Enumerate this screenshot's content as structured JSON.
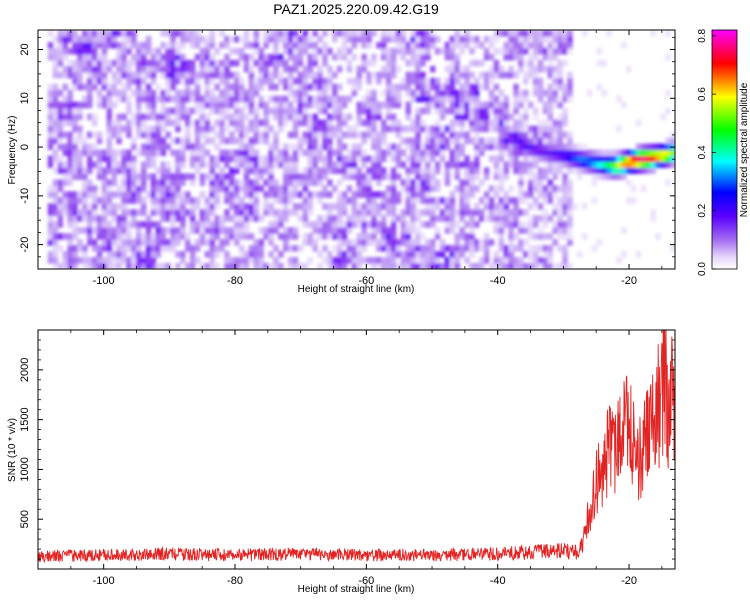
{
  "figure": {
    "title": "PAZ1.2025.220.09.42.G19"
  },
  "chart_data": [
    {
      "type": "heatmap",
      "title": "",
      "xlabel": "Height of straight line (km)",
      "ylabel": "Frequency (Hz)",
      "xlim": [
        -110,
        -13
      ],
      "ylim": [
        -25,
        24
      ],
      "xticks": [
        -100,
        -80,
        -60,
        -40,
        -20
      ],
      "yticks": [
        -20,
        -10,
        0,
        10,
        20
      ],
      "colorbar": {
        "label": "Normalized spectral amplitude",
        "range": [
          0,
          0.82
        ],
        "ticks": [
          "0.0",
          "0.2",
          "0.4",
          "0.6",
          "0.8"
        ],
        "colormap": [
          "#ffffff",
          "#c8a6f6",
          "#7f00ff",
          "#0000ff",
          "#00ffff",
          "#00ff00",
          "#ffff00",
          "#ff0000",
          "#ff00ff"
        ]
      },
      "noise_region": {
        "x_range": [
          -108.5,
          -28.5
        ],
        "y_range": [
          -25,
          24
        ],
        "typical_amplitude": 0.08
      },
      "signal_track": {
        "x": [
          -40,
          -38,
          -36,
          -34,
          -32,
          -30,
          -28,
          -26,
          -24,
          -22,
          -20,
          -18,
          -16,
          -14,
          -13
        ],
        "frequency": [
          1.5,
          1.8,
          0.5,
          -0.5,
          -1.2,
          -1.6,
          -2.3,
          -3.0,
          -3.6,
          -3.8,
          -3.0,
          -2.4,
          -2.0,
          -1.4,
          -1.0
        ],
        "amplitude": [
          0.12,
          0.18,
          0.22,
          0.2,
          0.2,
          0.24,
          0.3,
          0.33,
          0.38,
          0.55,
          0.72,
          0.8,
          0.7,
          0.6,
          0.5
        ]
      }
    },
    {
      "type": "line",
      "title": "",
      "xlabel": "Height of straight line (km)",
      "ylabel": "SNR (10 * v/v)",
      "xlim": [
        -110,
        -13
      ],
      "ylim": [
        0,
        2400
      ],
      "xticks": [
        -100,
        -80,
        -60,
        -40,
        -20
      ],
      "yticks": [
        500,
        1000,
        1500,
        2000
      ],
      "line_color": "#e32222",
      "series": [
        {
          "x": [
            -110,
            -100,
            -90,
            -80,
            -70,
            -60,
            -50,
            -40,
            -35,
            -30,
            -28,
            -27,
            -26,
            -25,
            -24,
            -23,
            -22,
            -21,
            -20,
            -19,
            -18,
            -17,
            -16,
            -15,
            -14.5,
            -14,
            -13.5,
            -13
          ],
          "y": [
            130,
            140,
            150,
            140,
            150,
            140,
            140,
            150,
            170,
            180,
            170,
            300,
            620,
            900,
            1150,
            1300,
            1250,
            1450,
            1550,
            1200,
            1300,
            1550,
            1650,
            1900,
            2250,
            1600,
            2000,
            1750
          ]
        }
      ]
    }
  ]
}
